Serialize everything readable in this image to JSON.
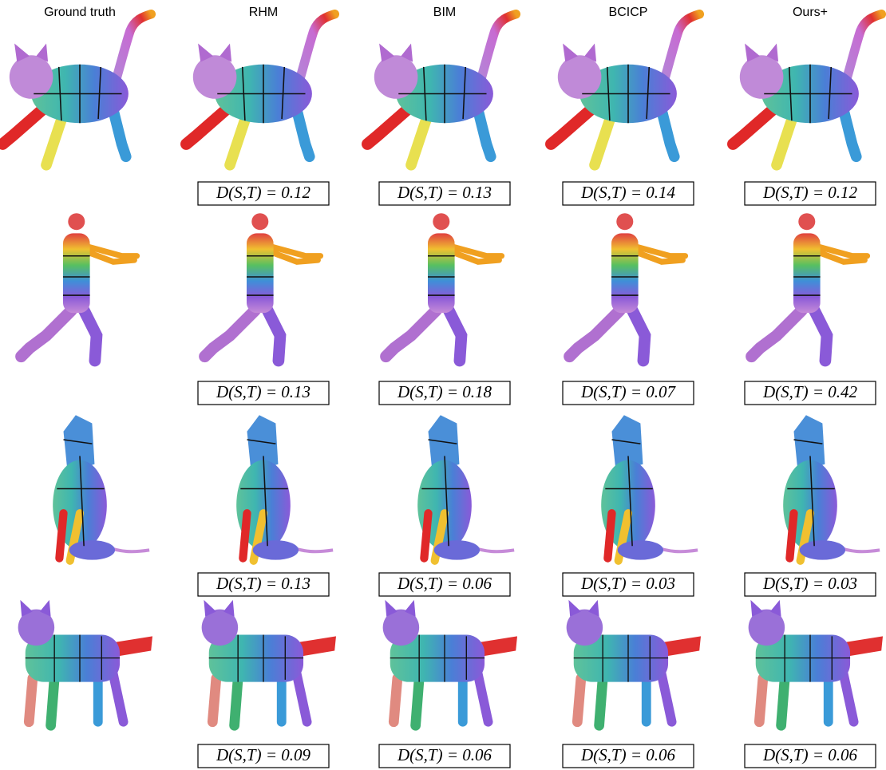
{
  "columns": [
    "Ground truth",
    "RHM",
    "BIM",
    "BCICP",
    "Ours+"
  ],
  "rows": [
    {
      "scores": [
        "D(S,T) = 0.12",
        "D(S,T) = 0.13",
        "D(S,T) = 0.14",
        "D(S,T) = 0.12"
      ]
    },
    {
      "scores": [
        "D(S,T) = 0.13",
        "D(S,T) = 0.18",
        "D(S,T) = 0.07",
        "D(S,T) = 0.42"
      ]
    },
    {
      "scores": [
        "D(S,T) = 0.13",
        "D(S,T) = 0.06",
        "D(S,T) = 0.03",
        "D(S,T) = 0.03"
      ]
    },
    {
      "scores": [
        "D(S,T) = 0.09",
        "D(S,T) = 0.06",
        "D(S,T) = 0.06",
        "D(S,T) = 0.06"
      ]
    }
  ]
}
